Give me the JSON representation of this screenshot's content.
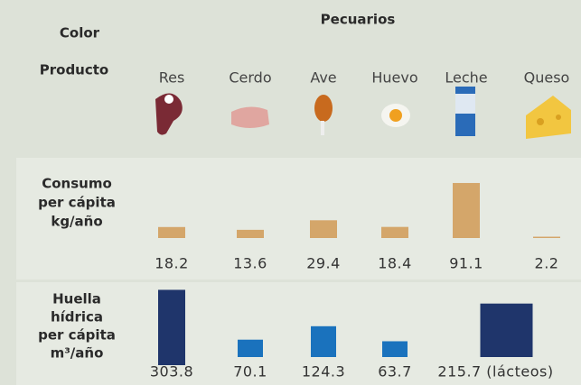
{
  "header": {
    "color_label": "Color",
    "group": "Pecuarios",
    "product_label": "Producto",
    "products": [
      "Res",
      "Cerdo",
      "Ave",
      "Huevo",
      "Leche",
      "Queso"
    ]
  },
  "chart_data": [
    {
      "type": "bar",
      "title": [
        "Consumo",
        "per cápita",
        "kg/año"
      ],
      "values": [
        18.2,
        13.6,
        29.4,
        18.4,
        91.1,
        2.2
      ],
      "color": "#d4a66a"
    },
    {
      "type": "bar",
      "title": [
        "Huella",
        "hídrica",
        "per cápita",
        "m³/año"
      ],
      "values": [
        303.8,
        70.1,
        124.3,
        63.7,
        215.7
      ],
      "value_labels": [
        "303.8",
        "70.1",
        "124.3",
        "63.7",
        "215.7 (lácteos)"
      ],
      "colors": [
        "#1f356b",
        "#1a72bd",
        "#1a72bd",
        "#1a72bd",
        "#1f356b"
      ]
    }
  ]
}
